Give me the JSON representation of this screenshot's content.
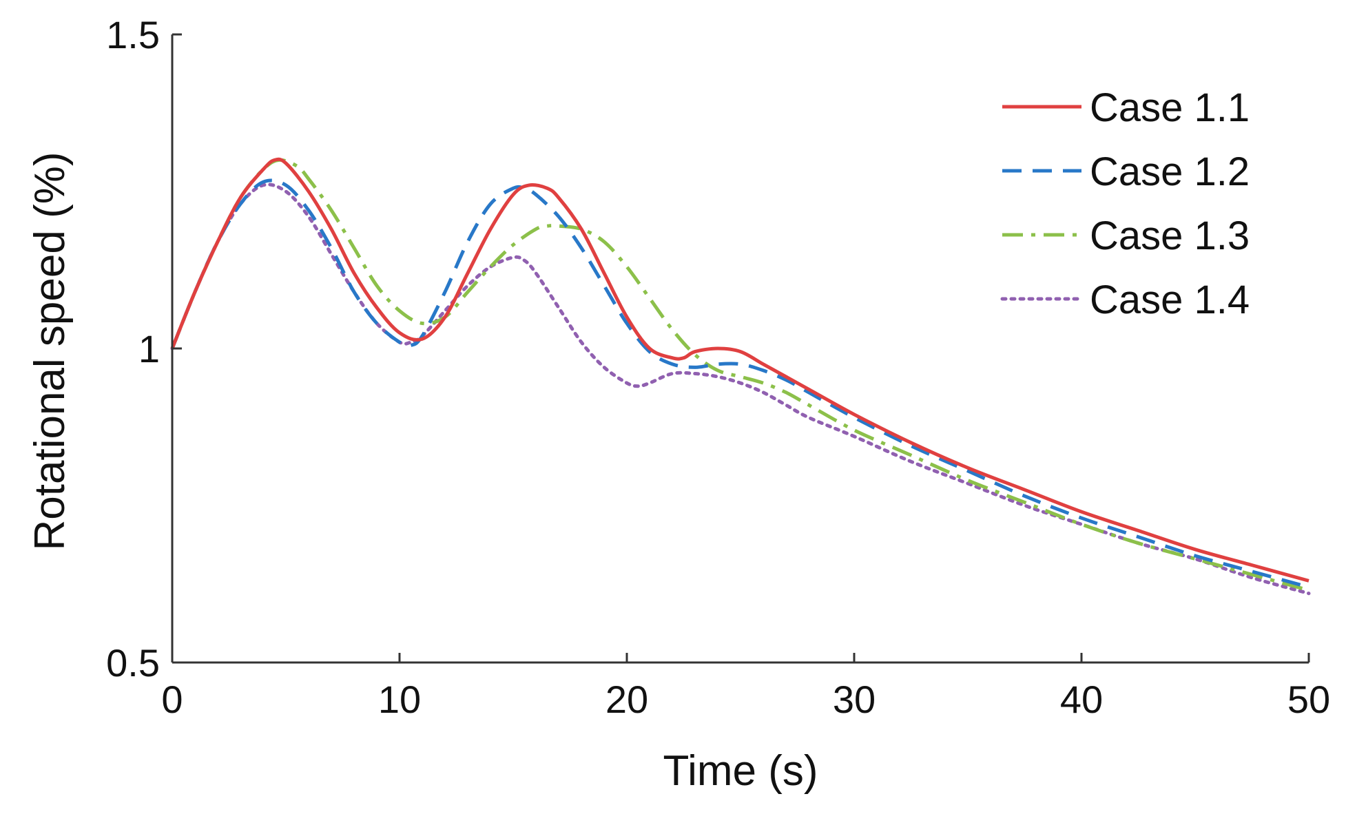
{
  "chart_data": {
    "type": "line",
    "title": "",
    "xlabel": "Time (s)",
    "ylabel": "Rotational speed (%)",
    "xlim": [
      0,
      50
    ],
    "ylim": [
      0.5,
      1.5
    ],
    "xticks": [
      0,
      10,
      20,
      30,
      40,
      50
    ],
    "xtick_labels": [
      "0",
      "10",
      "20",
      "30",
      "40",
      "50"
    ],
    "yticks": [
      0.5,
      1,
      1.5
    ],
    "ytick_labels": [
      "0.5",
      "1",
      "1.5"
    ],
    "grid": false,
    "legend_position": "top-right",
    "series": [
      {
        "name": "Case 1.1",
        "color": "#e04040",
        "style": "solid",
        "x": [
          0,
          1,
          2,
          3,
          4,
          4.5,
          5,
          6,
          7,
          8,
          9,
          10,
          11,
          12,
          13,
          14,
          15,
          15.7,
          16.5,
          17,
          18,
          19,
          20,
          21,
          22,
          22.5,
          23,
          24,
          25,
          26,
          27,
          28,
          30,
          32.5,
          35,
          37.5,
          40,
          42.5,
          45,
          47.5,
          50
        ],
        "y": [
          1.0,
          1.09,
          1.17,
          1.24,
          1.285,
          1.3,
          1.295,
          1.25,
          1.19,
          1.12,
          1.065,
          1.025,
          1.015,
          1.05,
          1.12,
          1.19,
          1.245,
          1.26,
          1.255,
          1.24,
          1.19,
          1.12,
          1.05,
          1.0,
          0.985,
          0.985,
          0.995,
          1.0,
          0.995,
          0.975,
          0.955,
          0.935,
          0.895,
          0.85,
          0.81,
          0.775,
          0.74,
          0.71,
          0.68,
          0.655,
          0.63
        ]
      },
      {
        "name": "Case 1.2",
        "color": "#2878c8",
        "style": "dashed",
        "x": [
          0,
          1,
          2,
          3,
          4,
          5,
          6,
          7,
          8,
          9,
          10,
          10.5,
          11,
          12,
          13,
          14,
          15,
          15.5,
          16,
          17,
          18,
          19,
          20,
          21,
          22,
          23,
          24,
          25,
          26,
          27,
          28,
          30,
          32.5,
          35,
          37.5,
          40,
          42.5,
          45,
          47.5,
          50
        ],
        "y": [
          1.0,
          1.09,
          1.17,
          1.23,
          1.265,
          1.26,
          1.22,
          1.16,
          1.09,
          1.04,
          1.01,
          1.005,
          1.02,
          1.09,
          1.17,
          1.23,
          1.255,
          1.255,
          1.245,
          1.21,
          1.16,
          1.1,
          1.04,
          0.995,
          0.975,
          0.97,
          0.975,
          0.975,
          0.965,
          0.95,
          0.93,
          0.89,
          0.845,
          0.805,
          0.765,
          0.73,
          0.7,
          0.67,
          0.645,
          0.62
        ]
      },
      {
        "name": "Case 1.3",
        "color": "#8cc04a",
        "style": "dashdot",
        "x": [
          0,
          1,
          2,
          3,
          4,
          4.7,
          5.5,
          6,
          7,
          8,
          9,
          10,
          11,
          12,
          13,
          14,
          15,
          16,
          16.5,
          17,
          18,
          19,
          20,
          21,
          22,
          23,
          24,
          25,
          26,
          27,
          28,
          30,
          32.5,
          35,
          37.5,
          40,
          42.5,
          45,
          47.5,
          50
        ],
        "y": [
          1.0,
          1.09,
          1.17,
          1.24,
          1.285,
          1.3,
          1.29,
          1.27,
          1.22,
          1.16,
          1.1,
          1.06,
          1.04,
          1.05,
          1.09,
          1.13,
          1.165,
          1.19,
          1.195,
          1.195,
          1.19,
          1.17,
          1.13,
          1.08,
          1.03,
          0.99,
          0.965,
          0.955,
          0.945,
          0.93,
          0.91,
          0.87,
          0.83,
          0.79,
          0.755,
          0.72,
          0.69,
          0.665,
          0.64,
          0.615
        ]
      },
      {
        "name": "Case 1.4",
        "color": "#9060b0",
        "style": "dotted",
        "x": [
          0,
          1,
          2,
          3,
          4,
          5,
          6,
          7,
          8,
          9,
          10,
          10.5,
          11,
          12,
          13,
          14,
          15,
          15.5,
          16,
          17,
          18,
          19,
          20,
          20.5,
          21,
          22,
          23,
          24,
          25,
          26,
          27,
          28,
          30,
          32.5,
          35,
          37.5,
          40,
          42.5,
          45,
          47.5,
          50
        ],
        "y": [
          1.0,
          1.09,
          1.17,
          1.23,
          1.26,
          1.25,
          1.21,
          1.15,
          1.09,
          1.04,
          1.01,
          1.01,
          1.02,
          1.06,
          1.1,
          1.13,
          1.145,
          1.14,
          1.12,
          1.065,
          1.01,
          0.97,
          0.945,
          0.94,
          0.945,
          0.96,
          0.96,
          0.955,
          0.945,
          0.93,
          0.91,
          0.89,
          0.86,
          0.82,
          0.785,
          0.75,
          0.72,
          0.69,
          0.665,
          0.635,
          0.61
        ]
      }
    ]
  }
}
